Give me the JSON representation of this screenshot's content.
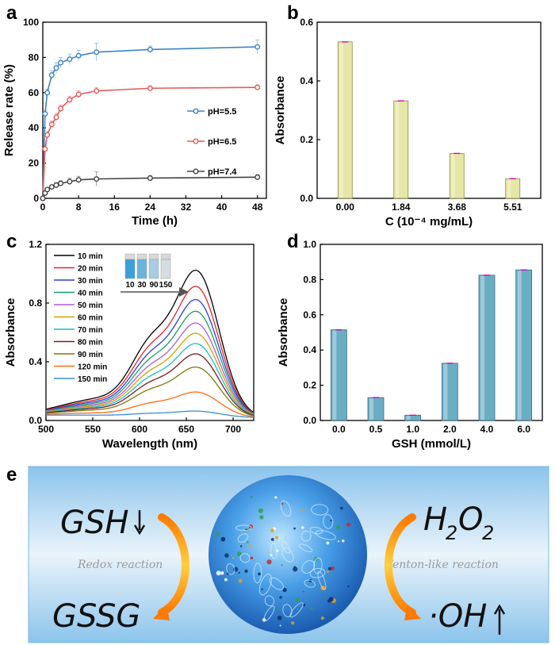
{
  "panels": {
    "a": "a",
    "b": "b",
    "c": "c",
    "d": "d",
    "e": "e"
  },
  "chart_data": [
    {
      "id": "a",
      "type": "line",
      "xlabel": "Time (h)",
      "ylabel": "Release rate (%)",
      "xlim": [
        0,
        50
      ],
      "ylim": [
        0,
        100
      ],
      "xticks": [
        0,
        8,
        16,
        24,
        32,
        40,
        48
      ],
      "yticks": [
        0,
        20,
        40,
        60,
        80,
        100
      ],
      "legend_position": "right",
      "series": [
        {
          "name": "pH=5.5",
          "color": "#3d85c6",
          "x": [
            0,
            0.5,
            1,
            2,
            3,
            4,
            6,
            8,
            12,
            24,
            48
          ],
          "y": [
            0,
            48,
            60,
            70,
            74,
            77,
            79,
            81,
            83,
            84.5,
            86
          ],
          "err": [
            0,
            2,
            2,
            2.5,
            3,
            3,
            3,
            3,
            5,
            2,
            4
          ]
        },
        {
          "name": "pH=6.5",
          "color": "#e85a5a",
          "x": [
            0,
            0.5,
            1,
            2,
            3,
            4,
            6,
            8,
            12,
            24,
            48
          ],
          "y": [
            0,
            28,
            36,
            42,
            46,
            51,
            56,
            59,
            61,
            62.5,
            63
          ],
          "err": [
            0,
            2,
            2,
            2,
            2,
            2,
            2,
            2,
            2,
            1.5,
            1.5
          ]
        },
        {
          "name": "pH=7.4",
          "color": "#444444",
          "x": [
            0,
            0.5,
            1,
            2,
            3,
            4,
            6,
            8,
            12,
            24,
            48
          ],
          "y": [
            0,
            3,
            5,
            6.5,
            7.5,
            8.5,
            9.5,
            10.5,
            11,
            11.5,
            12
          ],
          "err": [
            0,
            1,
            1,
            1,
            1.5,
            1.5,
            2,
            2,
            4,
            1.5,
            1.5
          ]
        }
      ]
    },
    {
      "id": "b",
      "type": "bar",
      "xlabel": "C (10⁻⁴ mg/mL)",
      "ylabel": "Absorbance",
      "ylim": [
        0,
        0.6
      ],
      "yticks": [
        "0.0",
        "0.2",
        "0.4",
        "0.6"
      ],
      "categories": [
        "0.00",
        "1.84",
        "3.68",
        "5.51"
      ],
      "values": [
        0.533,
        0.332,
        0.153,
        0.067
      ],
      "bar_color": "#e6e6a6",
      "bar_edge": "#8a8a4a",
      "error_color": "#e000c0"
    },
    {
      "id": "c",
      "type": "line",
      "xlabel": "Wavelength (nm)",
      "ylabel": "Absorbance",
      "xlim": [
        500,
        722
      ],
      "ylim": [
        0,
        1.2
      ],
      "xticks": [
        500,
        550,
        600,
        650,
        700
      ],
      "yticks": [
        "0.0",
        "0.4",
        "0.8",
        "1.2"
      ],
      "legend_position": "top-left",
      "inset_labels": [
        "10",
        "30",
        "90",
        "150"
      ],
      "series": [
        {
          "name": "10 min",
          "color": "#000000",
          "peak": 1.0
        },
        {
          "name": "20 min",
          "color": "#e8242c",
          "peak": 0.89
        },
        {
          "name": "30 min",
          "color": "#2a3fd8",
          "peak": 0.8
        },
        {
          "name": "40 min",
          "color": "#1aa06a",
          "peak": 0.72
        },
        {
          "name": "50 min",
          "color": "#b05ad8",
          "peak": 0.64
        },
        {
          "name": "60 min",
          "color": "#d6a000",
          "peak": 0.57
        },
        {
          "name": "70 min",
          "color": "#1abcc8",
          "peak": 0.5
        },
        {
          "name": "80 min",
          "color": "#7a1a20",
          "peak": 0.43
        },
        {
          "name": "90 min",
          "color": "#7a7a10",
          "peak": 0.34
        },
        {
          "name": "120 min",
          "color": "#ff6a10",
          "peak": 0.17
        },
        {
          "name": "150 min",
          "color": "#3b8ed8",
          "peak": 0.04
        }
      ]
    },
    {
      "id": "d",
      "type": "bar",
      "xlabel": "GSH (mmol/L)",
      "ylabel": "Absorbance",
      "ylim": [
        0,
        1.0
      ],
      "yticks": [
        "0.0",
        "0.2",
        "0.4",
        "0.6",
        "0.8",
        "1.0"
      ],
      "categories": [
        "0.0",
        "0.5",
        "1.0",
        "2.0",
        "4.0",
        "6.0"
      ],
      "values": [
        0.515,
        0.13,
        0.03,
        0.325,
        0.825,
        0.855
      ],
      "bar_color": "#6aaec4",
      "bar_edge": "#3a6a80",
      "error_color": "#e000c0"
    }
  ],
  "scheme": {
    "left_top": "GSH",
    "left_bottom": "GSSG",
    "left_reaction": "Redox reaction",
    "right_top_main": "H",
    "right_top_sub1": "2",
    "right_top_mid": "O",
    "right_top_sub2": "2",
    "right_bottom": "·OH",
    "right_reaction": "Fenton-like reaction"
  }
}
